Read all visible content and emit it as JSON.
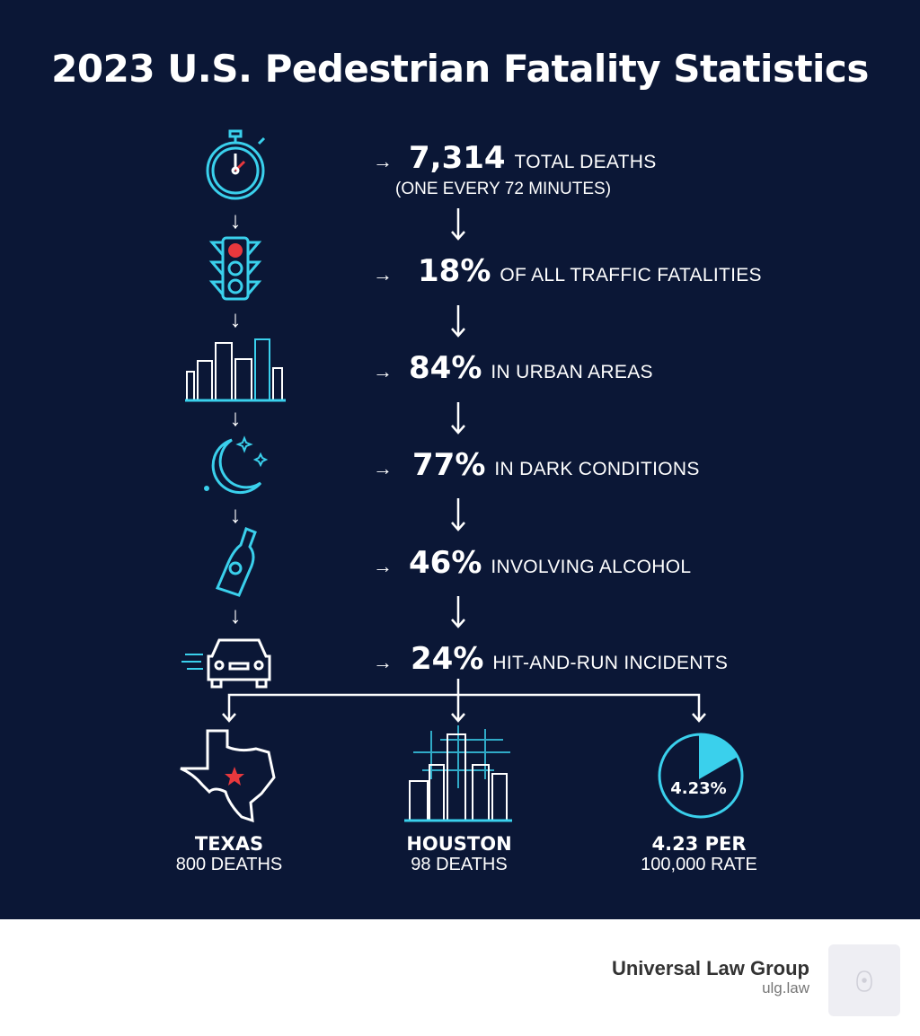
{
  "title": "2023 U.S. Pedestrian Fatality Statistics",
  "stats": [
    {
      "icon": "stopwatch-icon",
      "value": "7,314",
      "label": "TOTAL DEATHS",
      "sub": "(ONE EVERY 72 MINUTES)"
    },
    {
      "icon": "traffic-light-icon",
      "value": "18%",
      "label": "OF ALL TRAFFIC FATALITIES"
    },
    {
      "icon": "city-buildings-icon",
      "value": "84%",
      "label": "IN URBAN AREAS"
    },
    {
      "icon": "moon-stars-icon",
      "value": "77%",
      "label": "IN DARK CONDITIONS"
    },
    {
      "icon": "bottle-icon",
      "value": "46%",
      "label": "INVOLVING ALCOHOL"
    },
    {
      "icon": "car-icon",
      "value": "24%",
      "label": "HIT-AND-RUN INCIDENTS"
    }
  ],
  "arrow": "→",
  "down_arrow": "↓",
  "bottom": [
    {
      "icon": "texas-map-icon",
      "title": "TEXAS",
      "sub": "800 DEATHS"
    },
    {
      "icon": "houston-skyline-icon",
      "title": "HOUSTON",
      "sub": "98 DEATHS"
    },
    {
      "icon": "pie-rate-icon",
      "pie_label": "4.23%",
      "title": "4.23 PER",
      "sub": "100,000 RATE",
      "rate_percent": 4.23
    }
  ],
  "footer": {
    "name": "Universal Law Group",
    "url": "ulg.law"
  },
  "colors": {
    "background": "#0b1736",
    "accent": "#3ad0ec",
    "red": "#e8383d"
  }
}
